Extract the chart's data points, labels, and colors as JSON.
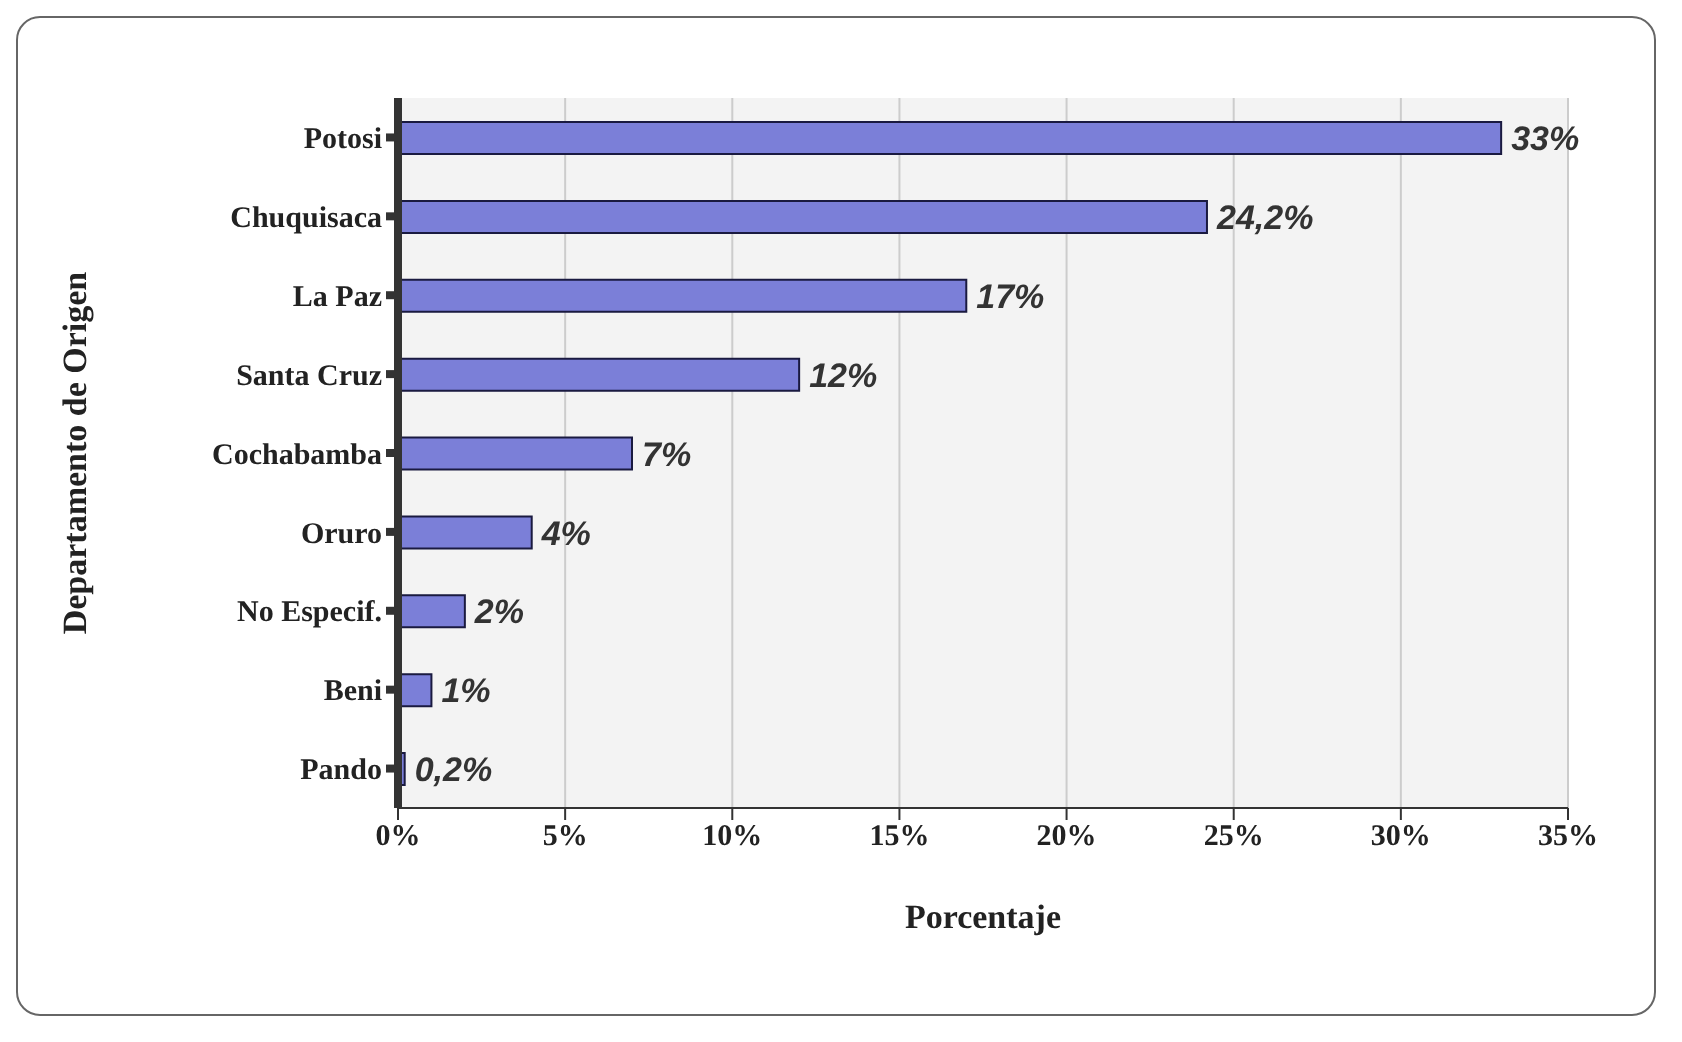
{
  "chart_data": {
    "type": "bar",
    "orientation": "horizontal",
    "xlabel": "Porcentaje",
    "ylabel": "Departamento de Origen",
    "categories": [
      "Potosi",
      "Chuquisaca",
      "La Paz",
      "Santa Cruz",
      "Cochabamba",
      "Oruro",
      "No Especif.",
      "Beni",
      "Pando"
    ],
    "values": [
      33,
      24.2,
      17,
      12,
      7,
      4,
      2,
      1,
      0.2
    ],
    "value_labels": [
      "33%",
      "24,2%",
      "17%",
      "12%",
      "7%",
      "4%",
      "2%",
      "1%",
      "0,2%"
    ],
    "color": "#7b7fd8",
    "xlim": [
      0,
      35
    ],
    "xticks": [
      {
        "value": 0,
        "label": "0%"
      },
      {
        "value": 5,
        "label": "5%"
      },
      {
        "value": 10,
        "label": "10%"
      },
      {
        "value": 15,
        "label": "15%"
      },
      {
        "value": 20,
        "label": "20%"
      },
      {
        "value": 25,
        "label": "25%"
      },
      {
        "value": 30,
        "label": "30%"
      },
      {
        "value": 35,
        "label": "35%"
      }
    ],
    "grid": "x"
  }
}
